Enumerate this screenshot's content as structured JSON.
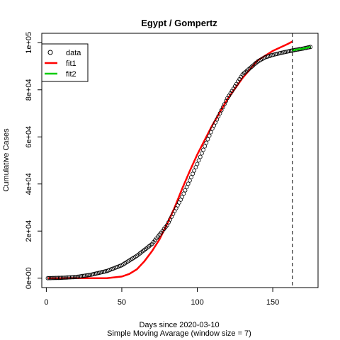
{
  "chart_data": {
    "type": "scatter",
    "title": "Egypt / Gompertz",
    "xlabel": "Days since 2020-03-10",
    "xlabel2": "Simple Moving Avarage (window size = 7)",
    "ylabel": "Cumulative Cases",
    "xlim": [
      -3,
      180
    ],
    "ylim": [
      -4000,
      104000
    ],
    "x_ticks": [
      0,
      50,
      100,
      150
    ],
    "x_tick_labels": [
      "0",
      "50",
      "100",
      "150"
    ],
    "y_ticks": [
      0,
      20000,
      40000,
      60000,
      80000,
      100000
    ],
    "y_tick_labels": [
      "0e+00",
      "2e+04",
      "4e+04",
      "6e+04",
      "8e+04",
      "1e+05"
    ],
    "vline_x": 163,
    "legend": {
      "position": "top-left",
      "entries": [
        {
          "label": "data",
          "symbol": "circle",
          "color": "#000000"
        },
        {
          "label": "fit1",
          "symbol": "line",
          "color": "#ff0000"
        },
        {
          "label": "fit2",
          "symbol": "line",
          "color": "#00cd00"
        }
      ]
    },
    "series": [
      {
        "name": "data",
        "kind": "points",
        "color": "#000000",
        "x": [
          1,
          10,
          20,
          30,
          40,
          50,
          60,
          70,
          80,
          90,
          100,
          110,
          120,
          130,
          140,
          145,
          150,
          155,
          160,
          163
        ],
        "y": [
          0,
          150,
          500,
          1500,
          3000,
          5500,
          9500,
          14500,
          22500,
          34500,
          48500,
          63500,
          76500,
          86500,
          92000,
          93800,
          94800,
          95600,
          96300,
          96700
        ]
      },
      {
        "name": "fit1",
        "kind": "line",
        "color": "#ff0000",
        "x": [
          1,
          40,
          50,
          55,
          60,
          65,
          70,
          75,
          80,
          85,
          90,
          95,
          100,
          110,
          120,
          130,
          140,
          150,
          160,
          163
        ],
        "y": [
          0,
          0,
          700,
          1800,
          3800,
          7200,
          11500,
          16500,
          23000,
          30000,
          38000,
          45500,
          52500,
          65000,
          76000,
          85000,
          92500,
          96500,
          99500,
          100500
        ]
      },
      {
        "name": "fit2",
        "kind": "line",
        "color": "#00cd00",
        "x": [
          163,
          165,
          170,
          175
        ],
        "y": [
          96700,
          96950,
          97500,
          98200
        ]
      },
      {
        "name": "fit2-points",
        "kind": "points",
        "color": "#00cd00",
        "x": [
          163,
          165,
          170,
          175
        ],
        "y": [
          96700,
          96950,
          97500,
          98200
        ]
      }
    ]
  }
}
